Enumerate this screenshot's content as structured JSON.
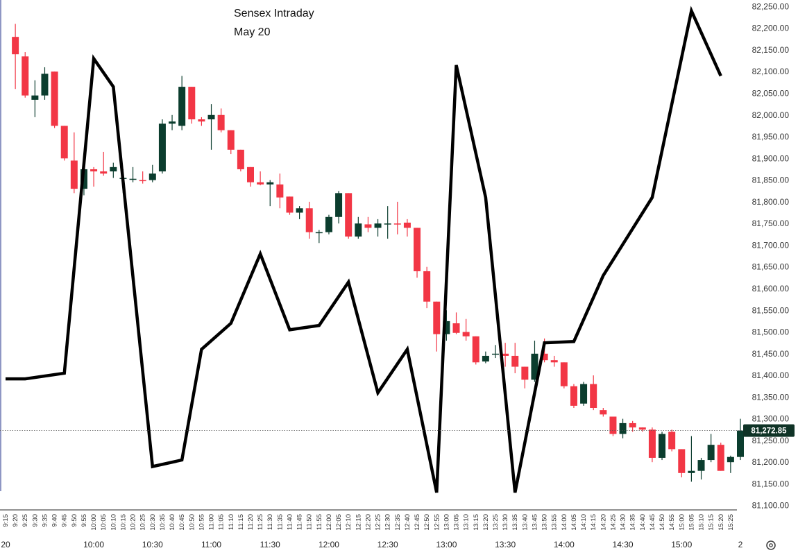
{
  "chart_data": {
    "type": "candlestick",
    "title": "Sensex Intraday",
    "subtitle": "May 20",
    "ylim": [
      81090,
      82265
    ],
    "yticks": [
      81100,
      81150,
      81200,
      81250,
      81300,
      81350,
      81400,
      81450,
      81500,
      81550,
      81600,
      81650,
      81700,
      81750,
      81800,
      81850,
      81900,
      81950,
      82000,
      82050,
      82100,
      82150,
      82200,
      82250
    ],
    "ytick_labels": [
      "81,100.00",
      "81,150.00",
      "81,200.00",
      "81,250.00",
      "81,300.00",
      "81,350.00",
      "81,400.00",
      "81,450.00",
      "81,500.00",
      "81,550.00",
      "81,600.00",
      "81,650.00",
      "81,700.00",
      "81,750.00",
      "81,800.00",
      "81,850.00",
      "81,900.00",
      "81,950.00",
      "82,000.00",
      "82,050.00",
      "82,100.00",
      "82,150.00",
      "82,200.00",
      "82,250.00"
    ],
    "last_price": 81272.85,
    "last_price_label": "81,272.85",
    "up_color": "#0b3d2e",
    "down_color": "#f23645",
    "times": [
      "9:15",
      "9:20",
      "9:25",
      "9:30",
      "9:35",
      "9:40",
      "9:45",
      "9:50",
      "9:55",
      "10:00",
      "10:05",
      "10:10",
      "10:15",
      "10:20",
      "10:25",
      "10:30",
      "10:35",
      "10:40",
      "10:45",
      "10:50",
      "10:55",
      "11:00",
      "11:05",
      "11:10",
      "11:15",
      "11:20",
      "11:25",
      "11:30",
      "11:35",
      "11:40",
      "11:45",
      "11:50",
      "11:55",
      "12:00",
      "12:05",
      "12:10",
      "12:15",
      "12:20",
      "12:25",
      "12:30",
      "12:35",
      "12:40",
      "12:45",
      "12:50",
      "12:55",
      "13:00",
      "13:05",
      "13:10",
      "13:15",
      "13:20",
      "13:25",
      "13:30",
      "13:35",
      "13:40",
      "13:45",
      "13:50",
      "13:55",
      "14:00",
      "14:05",
      "14:10",
      "14:15",
      "14:20",
      "14:25",
      "14:30",
      "14:35",
      "14:40",
      "14:45",
      "14:50",
      "14:55",
      "15:00",
      "15:05",
      "15:10",
      "15:15",
      "15:20",
      "15:25"
    ],
    "candles": [
      {
        "t": "9:20",
        "o": 82180,
        "h": 82210,
        "l": 82060,
        "c": 82140
      },
      {
        "t": "9:25",
        "o": 82135,
        "h": 82145,
        "l": 82040,
        "c": 82045
      },
      {
        "t": "9:30",
        "o": 82035,
        "h": 82080,
        "l": 81995,
        "c": 82045
      },
      {
        "t": "9:35",
        "o": 82045,
        "h": 82110,
        "l": 82035,
        "c": 82095
      },
      {
        "t": "9:40",
        "o": 82100,
        "h": 82100,
        "l": 81970,
        "c": 81975
      },
      {
        "t": "9:45",
        "o": 81975,
        "h": 81975,
        "l": 81895,
        "c": 81900
      },
      {
        "t": "9:50",
        "o": 81895,
        "h": 81960,
        "l": 81820,
        "c": 81830
      },
      {
        "t": "9:55",
        "o": 81830,
        "h": 81885,
        "l": 81815,
        "c": 81875
      },
      {
        "t": "10:00",
        "o": 81875,
        "h": 81880,
        "l": 81835,
        "c": 81870
      },
      {
        "t": "10:05",
        "o": 81870,
        "h": 81915,
        "l": 81860,
        "c": 81865
      },
      {
        "t": "10:10",
        "o": 81870,
        "h": 81890,
        "l": 81855,
        "c": 81880
      },
      {
        "t": "10:15",
        "o": 81855,
        "h": 81875,
        "l": 81820,
        "c": 81855
      },
      {
        "t": "10:20",
        "o": 81853,
        "h": 81880,
        "l": 81845,
        "c": 81853
      },
      {
        "t": "10:25",
        "o": 81850,
        "h": 81870,
        "l": 81842,
        "c": 81848
      },
      {
        "t": "10:30",
        "o": 81850,
        "h": 81885,
        "l": 81845,
        "c": 81865
      },
      {
        "t": "10:35",
        "o": 81870,
        "h": 81990,
        "l": 81865,
        "c": 81980
      },
      {
        "t": "10:40",
        "o": 81980,
        "h": 82000,
        "l": 81965,
        "c": 81985
      },
      {
        "t": "10:45",
        "o": 81975,
        "h": 82090,
        "l": 81965,
        "c": 82065
      },
      {
        "t": "10:50",
        "o": 82065,
        "h": 82065,
        "l": 81980,
        "c": 81990
      },
      {
        "t": "10:55",
        "o": 81990,
        "h": 81995,
        "l": 81975,
        "c": 81985
      },
      {
        "t": "11:00",
        "o": 81990,
        "h": 82025,
        "l": 81920,
        "c": 82000
      },
      {
        "t": "11:05",
        "o": 82000,
        "h": 82015,
        "l": 81960,
        "c": 81965
      },
      {
        "t": "11:10",
        "o": 81965,
        "h": 81965,
        "l": 81910,
        "c": 81920
      },
      {
        "t": "11:15",
        "o": 81920,
        "h": 81920,
        "l": 81870,
        "c": 81875
      },
      {
        "t": "11:20",
        "o": 81880,
        "h": 81880,
        "l": 81835,
        "c": 81845
      },
      {
        "t": "11:25",
        "o": 81845,
        "h": 81870,
        "l": 81838,
        "c": 81840
      },
      {
        "t": "11:30",
        "o": 81840,
        "h": 81850,
        "l": 81790,
        "c": 81845
      },
      {
        "t": "11:35",
        "o": 81840,
        "h": 81865,
        "l": 81785,
        "c": 81810
      },
      {
        "t": "11:40",
        "o": 81812,
        "h": 81812,
        "l": 81770,
        "c": 81775
      },
      {
        "t": "11:45",
        "o": 81775,
        "h": 81790,
        "l": 81760,
        "c": 81785
      },
      {
        "t": "11:50",
        "o": 81785,
        "h": 81800,
        "l": 81715,
        "c": 81730
      },
      {
        "t": "11:55",
        "o": 81730,
        "h": 81735,
        "l": 81705,
        "c": 81730
      },
      {
        "t": "12:00",
        "o": 81730,
        "h": 81770,
        "l": 81725,
        "c": 81765
      },
      {
        "t": "12:05",
        "o": 81765,
        "h": 81825,
        "l": 81750,
        "c": 81820
      },
      {
        "t": "12:10",
        "o": 81820,
        "h": 81820,
        "l": 81715,
        "c": 81720
      },
      {
        "t": "12:15",
        "o": 81720,
        "h": 81765,
        "l": 81715,
        "c": 81750
      },
      {
        "t": "12:20",
        "o": 81748,
        "h": 81765,
        "l": 81730,
        "c": 81740
      },
      {
        "t": "12:25",
        "o": 81740,
        "h": 81760,
        "l": 81720,
        "c": 81750
      },
      {
        "t": "12:30",
        "o": 81750,
        "h": 81790,
        "l": 81715,
        "c": 81750
      },
      {
        "t": "12:35",
        "o": 81750,
        "h": 81800,
        "l": 81725,
        "c": 81748
      },
      {
        "t": "12:40",
        "o": 81752,
        "h": 81760,
        "l": 81720,
        "c": 81740
      },
      {
        "t": "12:45",
        "o": 81740,
        "h": 81740,
        "l": 81625,
        "c": 81640
      },
      {
        "t": "12:50",
        "o": 81640,
        "h": 81650,
        "l": 81555,
        "c": 81570
      },
      {
        "t": "12:55",
        "o": 81570,
        "h": 81570,
        "l": 81455,
        "c": 81495
      },
      {
        "t": "13:00",
        "o": 81495,
        "h": 81550,
        "l": 81480,
        "c": 81525
      },
      {
        "t": "13:05",
        "o": 81520,
        "h": 81545,
        "l": 81495,
        "c": 81498
      },
      {
        "t": "13:10",
        "o": 81500,
        "h": 81530,
        "l": 81480,
        "c": 81490
      },
      {
        "t": "13:15",
        "o": 81490,
        "h": 81490,
        "l": 81425,
        "c": 81430
      },
      {
        "t": "13:20",
        "o": 81432,
        "h": 81455,
        "l": 81428,
        "c": 81445
      },
      {
        "t": "13:25",
        "o": 81448,
        "h": 81470,
        "l": 81440,
        "c": 81450
      },
      {
        "t": "13:30",
        "o": 81450,
        "h": 81475,
        "l": 81420,
        "c": 81445
      },
      {
        "t": "13:35",
        "o": 81445,
        "h": 81475,
        "l": 81405,
        "c": 81420
      },
      {
        "t": "13:40",
        "o": 81420,
        "h": 81420,
        "l": 81370,
        "c": 81390
      },
      {
        "t": "13:45",
        "o": 81390,
        "h": 81480,
        "l": 81385,
        "c": 81450
      },
      {
        "t": "13:50",
        "o": 81450,
        "h": 81485,
        "l": 81430,
        "c": 81435
      },
      {
        "t": "13:55",
        "o": 81435,
        "h": 81445,
        "l": 81420,
        "c": 81430
      },
      {
        "t": "14:00",
        "o": 81430,
        "h": 81430,
        "l": 81370,
        "c": 81375
      },
      {
        "t": "14:05",
        "o": 81375,
        "h": 81380,
        "l": 81325,
        "c": 81330
      },
      {
        "t": "14:10",
        "o": 81335,
        "h": 81385,
        "l": 81330,
        "c": 81380
      },
      {
        "t": "14:15",
        "o": 81380,
        "h": 81400,
        "l": 81320,
        "c": 81325
      },
      {
        "t": "14:20",
        "o": 81320,
        "h": 81325,
        "l": 81305,
        "c": 81310
      },
      {
        "t": "14:25",
        "o": 81305,
        "h": 81305,
        "l": 81260,
        "c": 81265
      },
      {
        "t": "14:30",
        "o": 81265,
        "h": 81300,
        "l": 81255,
        "c": 81290
      },
      {
        "t": "14:35",
        "o": 81290,
        "h": 81295,
        "l": 81270,
        "c": 81280
      },
      {
        "t": "14:40",
        "o": 81280,
        "h": 81280,
        "l": 81270,
        "c": 81275
      },
      {
        "t": "14:45",
        "o": 81275,
        "h": 81280,
        "l": 81200,
        "c": 81210
      },
      {
        "t": "14:50",
        "o": 81210,
        "h": 81270,
        "l": 81205,
        "c": 81265
      },
      {
        "t": "14:55",
        "o": 81270,
        "h": 81275,
        "l": 81225,
        "c": 81230
      },
      {
        "t": "15:00",
        "o": 81230,
        "h": 81230,
        "l": 81165,
        "c": 81175
      },
      {
        "t": "15:05",
        "o": 81175,
        "h": 81260,
        "l": 81155,
        "c": 81180
      },
      {
        "t": "15:10",
        "o": 81180,
        "h": 81210,
        "l": 81160,
        "c": 81205
      },
      {
        "t": "15:15",
        "o": 81205,
        "h": 81265,
        "l": 81200,
        "c": 81240
      },
      {
        "t": "15:20",
        "o": 81240,
        "h": 81245,
        "l": 81180,
        "c": 81180
      },
      {
        "t": "15:25",
        "o": 81200,
        "h": 81215,
        "l": 81175,
        "c": 81212
      },
      {
        "t": "15:30",
        "o": 81212,
        "h": 81300,
        "l": 81205,
        "c": 81272.85
      }
    ],
    "overlay_line": {
      "color": "#000000",
      "points": [
        {
          "t": "9:15",
          "y": 81392
        },
        {
          "t": "9:25",
          "y": 81392
        },
        {
          "t": "9:45",
          "y": 81405
        },
        {
          "t": "10:00",
          "y": 82130
        },
        {
          "t": "10:10",
          "y": 82065
        },
        {
          "t": "10:30",
          "y": 81190
        },
        {
          "t": "10:45",
          "y": 81205
        },
        {
          "t": "10:55",
          "y": 81460
        },
        {
          "t": "11:10",
          "y": 81520
        },
        {
          "t": "11:25",
          "y": 81680
        },
        {
          "t": "11:40",
          "y": 81505
        },
        {
          "t": "11:55",
          "y": 81515
        },
        {
          "t": "12:10",
          "y": 81615
        },
        {
          "t": "12:25",
          "y": 81360
        },
        {
          "t": "12:40",
          "y": 81460
        },
        {
          "t": "12:55",
          "y": 81130
        },
        {
          "t": "13:05",
          "y": 82115
        },
        {
          "t": "13:20",
          "y": 81810
        },
        {
          "t": "13:35",
          "y": 81130
        },
        {
          "t": "13:50",
          "y": 81475
        },
        {
          "t": "14:05",
          "y": 81478
        },
        {
          "t": "14:20",
          "y": 81630
        },
        {
          "t": "14:45",
          "y": 81810
        },
        {
          "t": "15:05",
          "y": 82240
        },
        {
          "t": "15:20",
          "y": 82090
        }
      ]
    },
    "x_major_labels": [
      {
        "t": "9:15",
        "label": "20"
      },
      {
        "t": "10:00",
        "label": "10:00"
      },
      {
        "t": "10:30",
        "label": "10:30"
      },
      {
        "t": "11:00",
        "label": "11:00"
      },
      {
        "t": "11:30",
        "label": "11:30"
      },
      {
        "t": "12:00",
        "label": "12:00"
      },
      {
        "t": "12:30",
        "label": "12:30"
      },
      {
        "t": "13:00",
        "label": "13:00"
      },
      {
        "t": "13:30",
        "label": "13:30"
      },
      {
        "t": "14:00",
        "label": "14:00"
      },
      {
        "t": "14:30",
        "label": "14:30"
      },
      {
        "t": "15:00",
        "label": "15:00"
      },
      {
        "t": "15:30",
        "label": "2"
      }
    ],
    "grid": false
  },
  "ui": {
    "settings_icon": "gear-icon"
  }
}
